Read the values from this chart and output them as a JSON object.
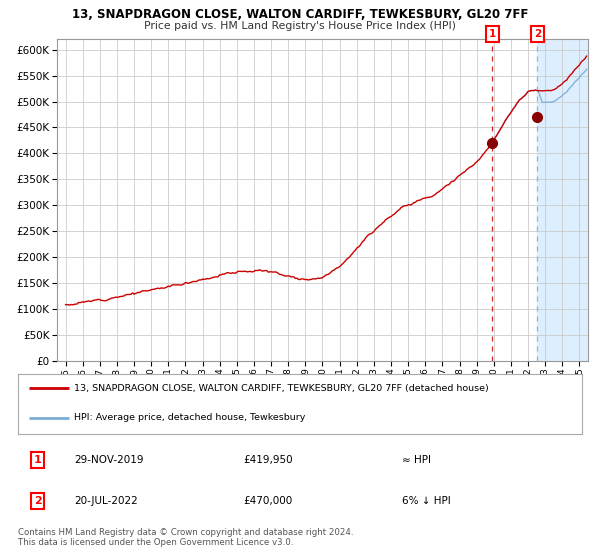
{
  "title1": "13, SNAPDRAGON CLOSE, WALTON CARDIFF, TEWKESBURY, GL20 7FF",
  "title2": "Price paid vs. HM Land Registry's House Price Index (HPI)",
  "legend_line1": "13, SNAPDRAGON CLOSE, WALTON CARDIFF, TEWKESBURY, GL20 7FF (detached house)",
  "legend_line2": "HPI: Average price, detached house, Tewkesbury",
  "annotation1_date": "29-NOV-2019",
  "annotation1_price": "£419,950",
  "annotation1_hpi": "≈ HPI",
  "annotation2_date": "20-JUL-2022",
  "annotation2_price": "£470,000",
  "annotation2_hpi": "6% ↓ HPI",
  "footer1": "Contains HM Land Registry data © Crown copyright and database right 2024.",
  "footer2": "This data is licensed under the Open Government Licence v3.0.",
  "sale1_year": 2019.91,
  "sale1_price": 419950,
  "sale2_year": 2022.55,
  "sale2_price": 470000,
  "ylim_min": 0,
  "ylim_max": 620000,
  "xlim_min": 1994.5,
  "xlim_max": 2025.5,
  "bg_color": "#ffffff",
  "plot_bg": "#ffffff",
  "grid_color": "#cccccc",
  "line_color_red": "#cc0000",
  "line_color_blue": "#7aaed6",
  "shade_color": "#ddeeff",
  "dot_color": "#880000",
  "vline1_color": "#cc0000",
  "vline2_color": "#7aaed6"
}
